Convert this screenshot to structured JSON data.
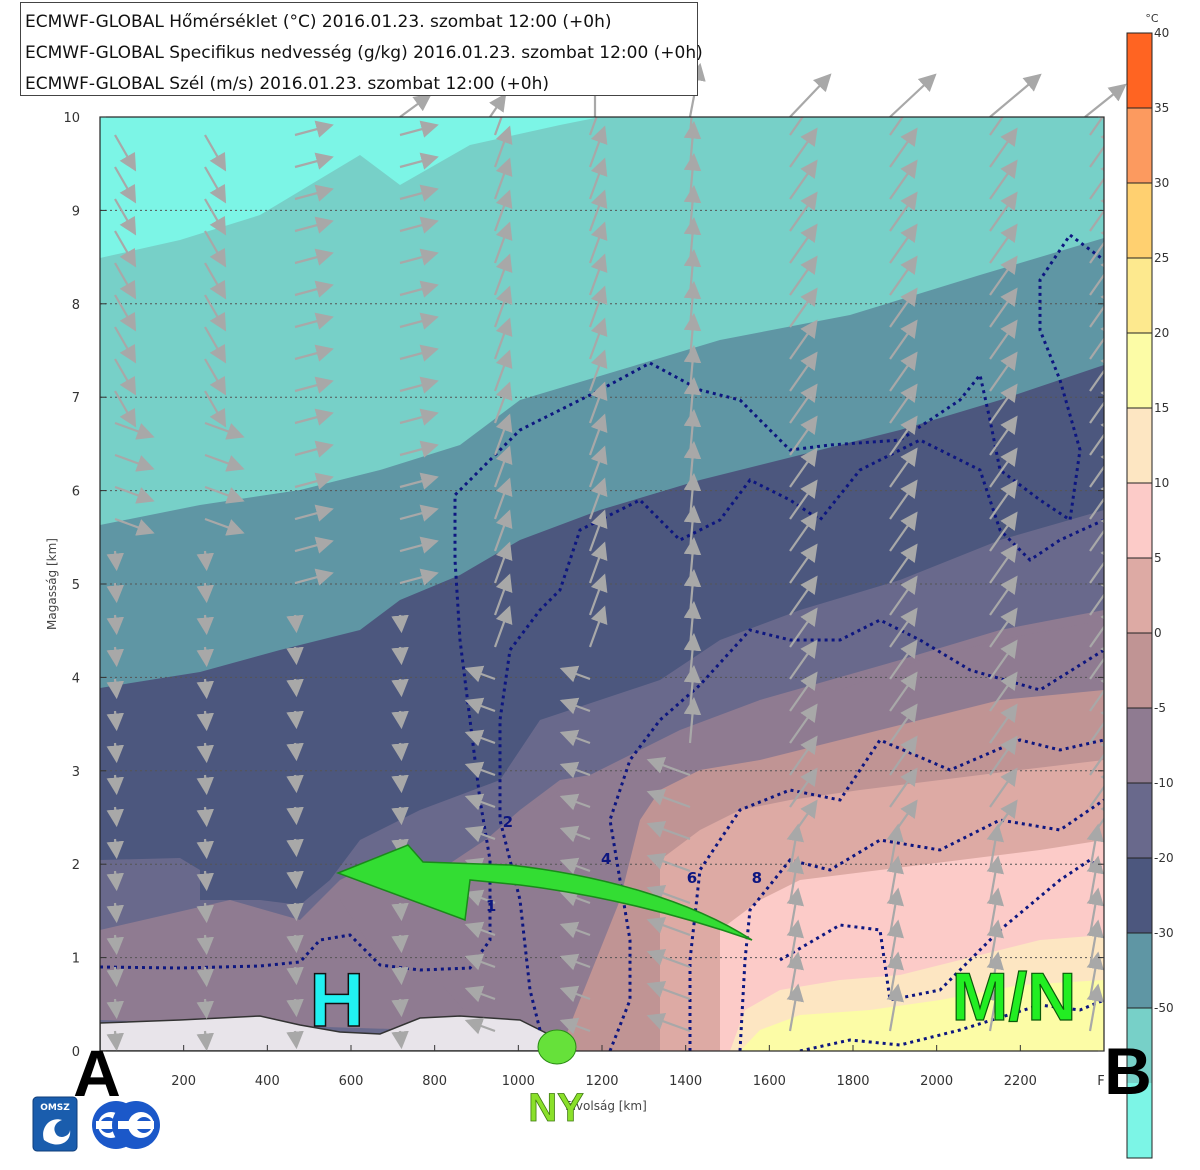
{
  "legend": {
    "lines": [
      "ECMWF-GLOBAL Hőmérséklet (°C) 2016.01.23. szombat 12:00 (+0h)",
      "ECMWF-GLOBAL Specifikus nedvesség (g/kg) 2016.01.23. szombat 12:00 (+0h)",
      "ECMWF-GLOBAL Szél (m/s) 2016.01.23. szombat 12:00 (+0h)"
    ]
  },
  "chart_data": {
    "type": "cross-section",
    "xlabel": "Távolság [km]",
    "ylabel": "Magasság [km]",
    "xlim": [
      0,
      2400
    ],
    "ylim": [
      0,
      10
    ],
    "x_ticks": [
      200,
      400,
      600,
      800,
      1000,
      1200,
      1400,
      1600,
      1800,
      2000,
      2200
    ],
    "x_end_label": "F",
    "y_ticks": [
      0,
      1,
      2,
      3,
      4,
      5,
      6,
      7,
      8,
      9,
      10
    ],
    "grid": "dotted horizontal",
    "colorbar": {
      "unit": "°C",
      "levels": [
        40,
        35,
        30,
        25,
        20,
        15,
        10,
        5,
        0,
        -5,
        -10,
        -20,
        -30,
        -50
      ],
      "colors": [
        "#ff6422",
        "#fc9a5f",
        "#ffd070",
        "#fde98e",
        "#fcfca6",
        "#fde6c2",
        "#fccbc8",
        "#ddaaa4",
        "#c09494",
        "#8f7b91",
        "#69698c",
        "#4c577e",
        "#5f96a4",
        "#77d0c8",
        "#7cf5e6"
      ]
    },
    "humidity_contour_labels": [
      {
        "label": "1",
        "x": 935,
        "z": 1.5
      },
      {
        "label": "2",
        "x": 975,
        "z": 2.4
      },
      {
        "label": "4",
        "x": 1210,
        "z": 2.0
      },
      {
        "label": "6",
        "x": 1415,
        "z": 1.8
      },
      {
        "label": "8",
        "x": 1570,
        "z": 1.8
      }
    ],
    "annotations": {
      "start_label": "A",
      "end_label": "B",
      "high_label": "H",
      "ny_label": "NY",
      "mn_label": "M/N"
    },
    "flow_arrow": {
      "from": [
        1560,
        1.2
      ],
      "to": [
        560,
        1.9
      ],
      "color": "#33dd33"
    }
  },
  "logos": {
    "omsz_text": "OMSZ"
  }
}
